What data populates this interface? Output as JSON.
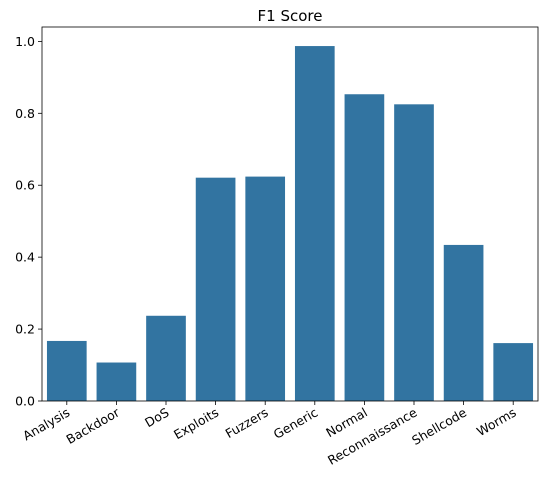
{
  "chart_data": {
    "type": "bar",
    "title": "F1 Score",
    "xlabel": "",
    "ylabel": "",
    "categories": [
      "Analysis",
      "Backdoor",
      "DoS",
      "Exploits",
      "Fuzzers",
      "Generic",
      "Normal",
      "Reconnaissance",
      "Shellcode",
      "Worms"
    ],
    "values": [
      0.167,
      0.107,
      0.237,
      0.621,
      0.624,
      0.987,
      0.853,
      0.825,
      0.434,
      0.161
    ],
    "ylim": [
      0,
      1.04
    ],
    "yticks": [
      0.0,
      0.2,
      0.4,
      0.6,
      0.8,
      1.0
    ],
    "ytick_labels": [
      "0.0",
      "0.2",
      "0.4",
      "0.6",
      "0.8",
      "1.0"
    ],
    "bar_color": "#3274a1",
    "grid": false,
    "legend": "none"
  }
}
